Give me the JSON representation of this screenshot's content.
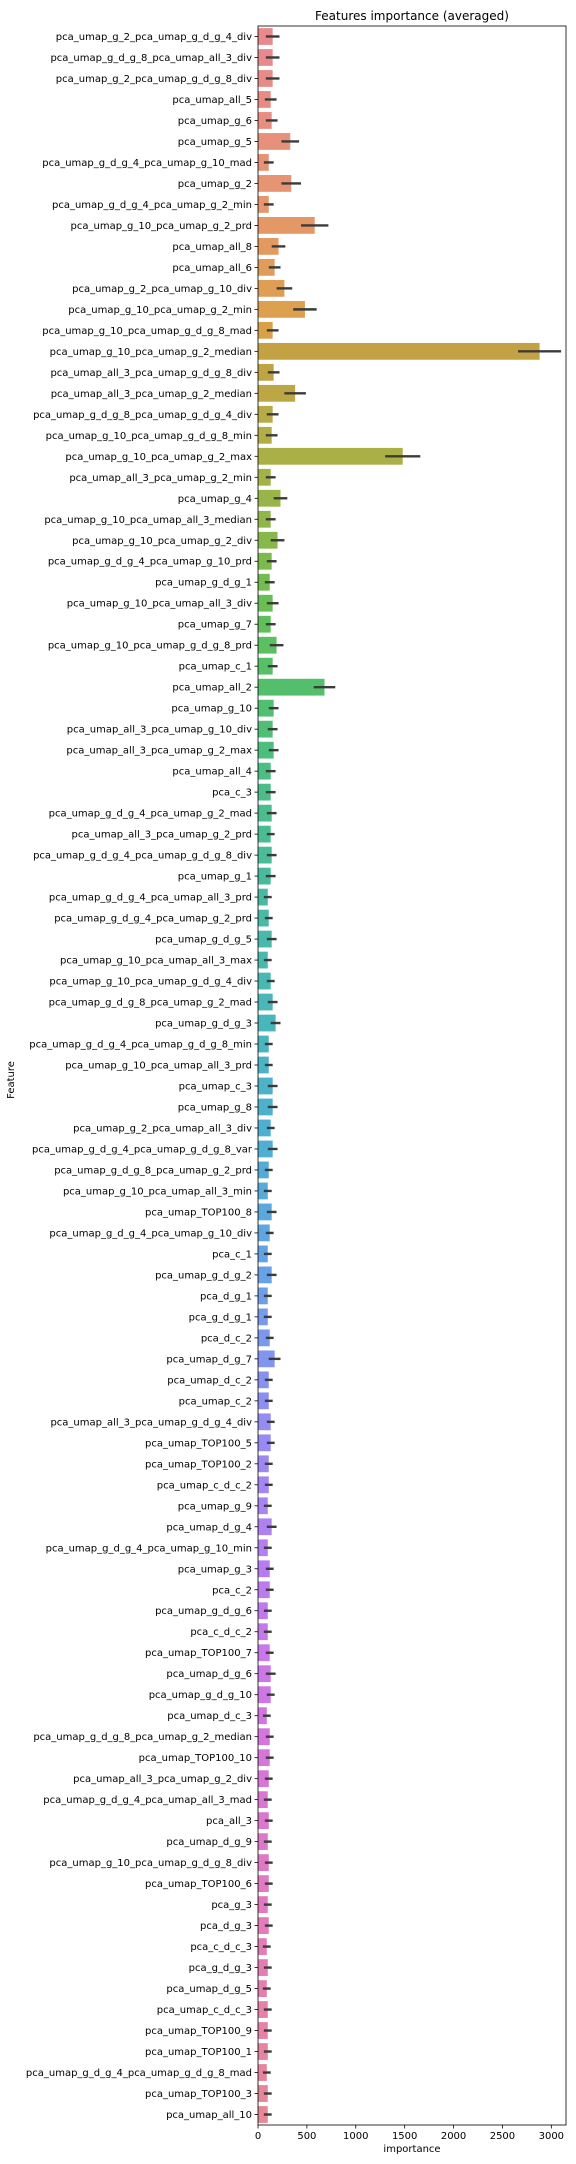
{
  "chart_data": {
    "type": "bar",
    "orientation": "horizontal",
    "title": "Features importance (averaged)",
    "xlabel": "importance",
    "ylabel": "Feature",
    "xlim": [
      0,
      3150
    ],
    "xticks": [
      0,
      500,
      1000,
      1500,
      2000,
      2500,
      3000
    ],
    "grid": false,
    "legend": "none",
    "categories": [
      "pca_umap_g_2_pca_umap_g_d_g_4_div",
      "pca_umap_g_d_g_8_pca_umap_all_3_div",
      "pca_umap_g_2_pca_umap_g_d_g_8_div",
      "pca_umap_all_5",
      "pca_umap_g_6",
      "pca_umap_g_5",
      "pca_umap_g_d_g_4_pca_umap_g_10_mad",
      "pca_umap_g_2",
      "pca_umap_g_d_g_4_pca_umap_g_2_min",
      "pca_umap_g_10_pca_umap_g_2_prd",
      "pca_umap_all_8",
      "pca_umap_all_6",
      "pca_umap_g_2_pca_umap_g_10_div",
      "pca_umap_g_10_pca_umap_g_2_min",
      "pca_umap_g_10_pca_umap_g_d_g_8_mad",
      "pca_umap_g_10_pca_umap_g_2_median",
      "pca_umap_all_3_pca_umap_g_d_g_8_div",
      "pca_umap_all_3_pca_umap_g_2_median",
      "pca_umap_g_d_g_8_pca_umap_g_d_g_4_div",
      "pca_umap_g_10_pca_umap_g_d_g_8_min",
      "pca_umap_g_10_pca_umap_g_2_max",
      "pca_umap_all_3_pca_umap_g_2_min",
      "pca_umap_g_4",
      "pca_umap_g_10_pca_umap_all_3_median",
      "pca_umap_g_10_pca_umap_g_2_div",
      "pca_umap_g_d_g_4_pca_umap_g_10_prd",
      "pca_umap_g_d_g_1",
      "pca_umap_g_10_pca_umap_all_3_div",
      "pca_umap_g_7",
      "pca_umap_g_10_pca_umap_g_d_g_8_prd",
      "pca_umap_c_1",
      "pca_umap_all_2",
      "pca_umap_g_10",
      "pca_umap_all_3_pca_umap_g_10_div",
      "pca_umap_all_3_pca_umap_g_2_max",
      "pca_umap_all_4",
      "pca_c_3",
      "pca_umap_g_d_g_4_pca_umap_g_2_mad",
      "pca_umap_all_3_pca_umap_g_2_prd",
      "pca_umap_g_d_g_4_pca_umap_g_d_g_8_div",
      "pca_umap_g_1",
      "pca_umap_g_d_g_4_pca_umap_all_3_prd",
      "pca_umap_g_d_g_4_pca_umap_g_2_prd",
      "pca_umap_g_d_g_5",
      "pca_umap_g_10_pca_umap_all_3_max",
      "pca_umap_g_10_pca_umap_g_d_g_4_div",
      "pca_umap_g_d_g_8_pca_umap_g_2_mad",
      "pca_umap_g_d_g_3",
      "pca_umap_g_d_g_4_pca_umap_g_d_g_8_min",
      "pca_umap_g_10_pca_umap_all_3_prd",
      "pca_umap_c_3",
      "pca_umap_g_8",
      "pca_umap_g_2_pca_umap_all_3_div",
      "pca_umap_g_d_g_4_pca_umap_g_d_g_8_var",
      "pca_umap_g_d_g_8_pca_umap_g_2_prd",
      "pca_umap_g_10_pca_umap_all_3_min",
      "pca_umap_TOP100_8",
      "pca_umap_g_d_g_4_pca_umap_g_10_div",
      "pca_c_1",
      "pca_umap_g_d_g_2",
      "pca_d_g_1",
      "pca_g_d_g_1",
      "pca_d_c_2",
      "pca_umap_d_g_7",
      "pca_umap_d_c_2",
      "pca_umap_c_2",
      "pca_umap_all_3_pca_umap_g_d_g_4_div",
      "pca_umap_TOP100_5",
      "pca_umap_TOP100_2",
      "pca_umap_c_d_c_2",
      "pca_umap_g_9",
      "pca_umap_d_g_4",
      "pca_umap_g_d_g_4_pca_umap_g_10_min",
      "pca_umap_g_3",
      "pca_c_2",
      "pca_umap_g_d_g_6",
      "pca_c_d_c_2",
      "pca_umap_TOP100_7",
      "pca_umap_d_g_6",
      "pca_umap_g_d_g_10",
      "pca_umap_d_c_3",
      "pca_umap_g_d_g_8_pca_umap_g_2_median",
      "pca_umap_TOP100_10",
      "pca_umap_all_3_pca_umap_g_2_div",
      "pca_umap_g_d_g_4_pca_umap_all_3_mad",
      "pca_all_3",
      "pca_umap_d_g_9",
      "pca_umap_g_10_pca_umap_g_d_g_8_div",
      "pca_umap_TOP100_6",
      "pca_g_3",
      "pca_d_g_3",
      "pca_c_d_c_3",
      "pca_g_d_g_3",
      "pca_umap_d_g_5",
      "pca_umap_c_d_c_3",
      "pca_umap_TOP100_9",
      "pca_umap_TOP100_1",
      "pca_umap_g_d_g_4_pca_umap_g_d_g_8_mad",
      "pca_umap_TOP100_3",
      "pca_umap_all_10"
    ],
    "values": [
      150,
      150,
      150,
      130,
      140,
      330,
      110,
      340,
      110,
      580,
      210,
      170,
      270,
      480,
      150,
      2880,
      160,
      380,
      150,
      140,
      1480,
      130,
      230,
      130,
      200,
      140,
      120,
      150,
      130,
      190,
      150,
      680,
      160,
      150,
      160,
      130,
      130,
      140,
      130,
      140,
      130,
      100,
      110,
      140,
      100,
      130,
      150,
      180,
      110,
      110,
      150,
      150,
      130,
      150,
      110,
      100,
      140,
      120,
      100,
      140,
      100,
      100,
      120,
      170,
      110,
      110,
      130,
      130,
      110,
      110,
      100,
      140,
      100,
      120,
      120,
      100,
      100,
      120,
      130,
      130,
      90,
      120,
      120,
      110,
      100,
      110,
      100,
      110,
      110,
      100,
      110,
      90,
      100,
      90,
      100,
      100,
      100,
      90,
      100,
      100
    ],
    "errors": [
      70,
      70,
      70,
      60,
      60,
      90,
      50,
      100,
      50,
      140,
      70,
      60,
      80,
      120,
      60,
      220,
      60,
      110,
      60,
      60,
      180,
      50,
      70,
      50,
      70,
      50,
      50,
      60,
      50,
      70,
      50,
      110,
      50,
      50,
      50,
      50,
      50,
      50,
      40,
      50,
      50,
      40,
      40,
      50,
      40,
      40,
      50,
      50,
      40,
      40,
      50,
      50,
      40,
      50,
      40,
      40,
      50,
      40,
      40,
      50,
      40,
      40,
      40,
      60,
      40,
      40,
      40,
      40,
      40,
      40,
      40,
      50,
      40,
      40,
      40,
      40,
      40,
      40,
      50,
      40,
      40,
      40,
      40,
      40,
      40,
      40,
      40,
      40,
      40,
      40,
      40,
      40,
      40,
      40,
      40,
      40,
      40,
      40,
      40,
      40
    ],
    "colors": [
      "#e88a8c",
      "#e88a8b",
      "#e78b88",
      "#e78c84",
      "#e78e80",
      "#e7907b",
      "#e69276",
      "#e69471",
      "#e5966c",
      "#e49866",
      "#e39a61",
      "#e19c5b",
      "#df9e56",
      "#dca04f",
      "#d9a24a",
      "#c4a143",
      "#c0a443",
      "#bca744",
      "#b8aa44",
      "#b3ad45",
      "#aab046",
      "#a2b247",
      "#99b448",
      "#90b64a",
      "#86b84c",
      "#7cba4e",
      "#72bc51",
      "#68be55",
      "#60bf5b",
      "#5ac061",
      "#56c067",
      "#53bf6c",
      "#51bf72",
      "#4fbf78",
      "#4ebe7e",
      "#4dbe83",
      "#4cbd88",
      "#4bbd8d",
      "#4abc92",
      "#4abc97",
      "#49bb9c",
      "#49baa1",
      "#49baa5",
      "#49b9aa",
      "#49b8ae",
      "#49b7b2",
      "#4ab6b7",
      "#4ab5bb",
      "#4ab4bf",
      "#4bb3c3",
      "#4cb2c7",
      "#4db1cb",
      "#4fafcf",
      "#51aed3",
      "#54acd6",
      "#57aada",
      "#5ba8dd",
      "#5fa6e0",
      "#64a3e3",
      "#69a1e6",
      "#6f9ee8",
      "#759bea",
      "#7b98ec",
      "#8195ee",
      "#8792ef",
      "#8d8ff0",
      "#938cf1",
      "#998af2",
      "#9f87f2",
      "#a485f2",
      "#a983f2",
      "#ae81f1",
      "#b37ff1",
      "#b77df0",
      "#bc7bee",
      "#c07aec",
      "#c479ea",
      "#c878e8",
      "#cb77e5",
      "#ce76e2",
      "#d176df",
      "#d476dc",
      "#d676d9",
      "#d876d5",
      "#da77d2",
      "#dc77ce",
      "#de78ca",
      "#df79c6",
      "#e07ac2",
      "#e17bbe",
      "#e27cba",
      "#e37db6",
      "#e47eb2",
      "#e480ae",
      "#e581aa",
      "#e582a6",
      "#e684a2",
      "#e6859e",
      "#e6869a",
      "#e78896"
    ]
  }
}
